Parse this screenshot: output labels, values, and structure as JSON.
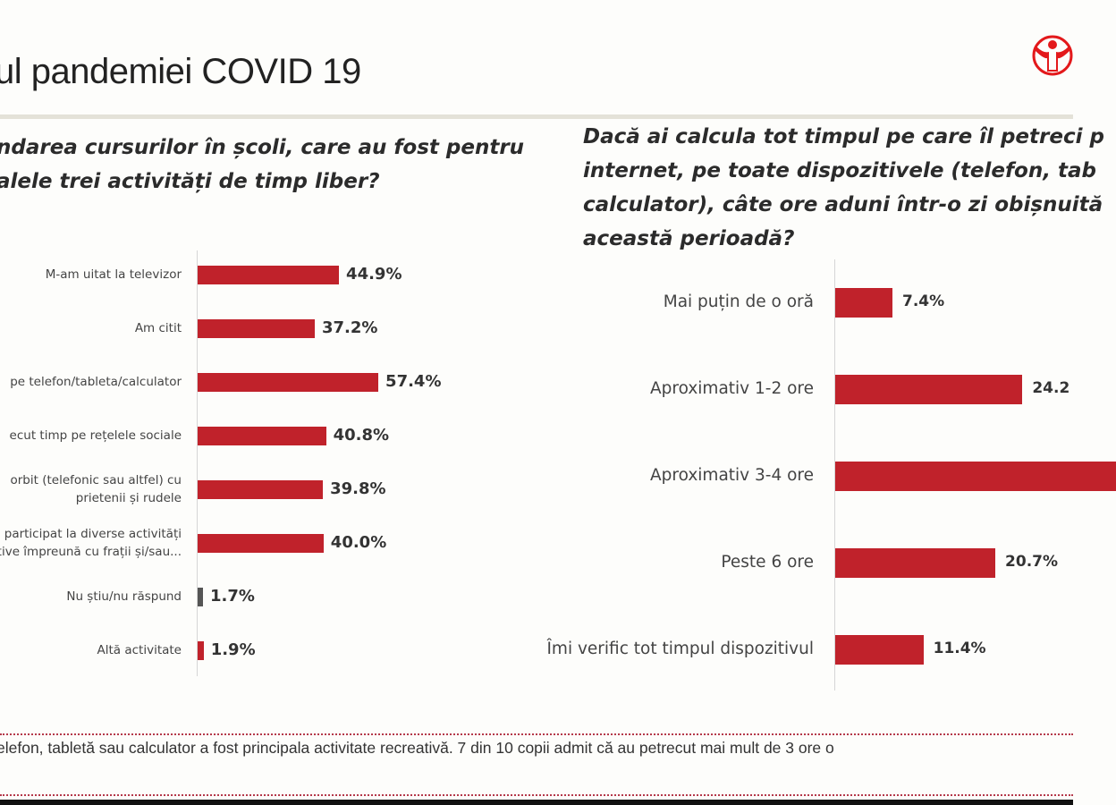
{
  "slide": {
    "title": "ul pandemiei COVID 19",
    "footer": "elefon, tabletă sau calculator a fost principala activitate recreativă. 7 din 10 copii admit că au petrecut mai mult de 3 ore o",
    "logo": "Save the Children logo",
    "colors": {
      "bar": "#c0222b",
      "bar_neutral": "#555555",
      "logo": "#e3191b"
    }
  },
  "chart_data": [
    {
      "type": "bar",
      "orientation": "horizontal",
      "title_lines": [
        "ndarea cursurilor în școli, care au fost pentru",
        "alele trei activități de timp liber?"
      ],
      "categories": [
        [
          "M-am uitat la televizor"
        ],
        [
          "Am citit"
        ],
        [
          "pe telefon/tableta/calculator"
        ],
        [
          "ecut timp pe rețelele sociale"
        ],
        [
          "orbit (telefonic sau altfel) cu",
          "prietenii și rudele"
        ],
        [
          "participat la diverse activități",
          "tive împreună cu frații și/sau..."
        ],
        [
          "Nu știu/nu răspund"
        ],
        [
          "Altă activitate"
        ]
      ],
      "values": [
        44.9,
        37.2,
        57.4,
        40.8,
        39.8,
        40.0,
        1.7,
        1.9
      ],
      "labels": [
        "44.9%",
        "37.2%",
        "57.4%",
        "40.8%",
        "39.8%",
        "40.0%",
        "1.7%",
        "1.9%"
      ],
      "bar_colors": [
        "#c0222b",
        "#c0222b",
        "#c0222b",
        "#c0222b",
        "#c0222b",
        "#c0222b",
        "#555555",
        "#c0222b"
      ],
      "unit": "%",
      "grid": false
    },
    {
      "type": "bar",
      "orientation": "horizontal",
      "title_lines": [
        "Dacă ai calcula tot timpul pe care îl petreci p",
        "internet, pe toate dispozitivele (telefon, tab",
        "calculator), câte ore aduni într-o zi obișnuită",
        "această perioadă?"
      ],
      "categories": [
        [
          "Mai puțin de o oră"
        ],
        [
          "Aproximativ 1-2 ore"
        ],
        [
          "Aproximativ 3-4 ore"
        ],
        [
          "Peste 6 ore"
        ],
        [
          "Îmi verific tot timpul dispozitivul"
        ]
      ],
      "values": [
        7.4,
        24.2,
        36.3,
        20.7,
        11.4
      ],
      "labels": [
        "7.4%",
        "24.2",
        "",
        "20.7%",
        "11.4%"
      ],
      "bar_colors": [
        "#c0222b",
        "#c0222b",
        "#c0222b",
        "#c0222b",
        "#c0222b"
      ],
      "unit": "%",
      "grid": false
    }
  ]
}
